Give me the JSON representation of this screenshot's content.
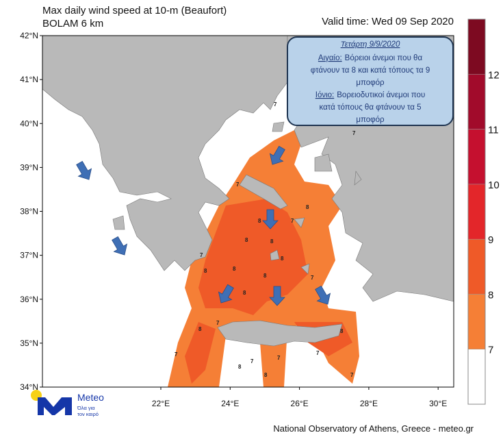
{
  "header": {
    "title": "Max daily wind speed at 10-m (Beaufort)",
    "model": "BOLAM 6 km",
    "valid_time": "Valid time: Wed 09 Sep 2020"
  },
  "info_box": {
    "date": "Τετάρτη 9/9/2020",
    "aegean_label": "Αιγαίο:",
    "aegean_lines": [
      "Βόρειοι άνεμοι που θα",
      "φτάνουν τα 8 και κατά τόπους τα 9",
      "μποφόρ"
    ],
    "ionian_label": "Ιόνιο:",
    "ionian_lines": [
      "Βορειοδυτικοί άνεμοι που",
      "κατά τόπους θα φτάνουν τα 5",
      "μποφόρ"
    ]
  },
  "latitude_labels": [
    "42°N",
    "41°N",
    "40°N",
    "39°N",
    "38°N",
    "37°N",
    "36°N",
    "35°N",
    "34°N"
  ],
  "longitude_labels": [
    "22°E",
    "24°E",
    "26°E",
    "28°E",
    "30°E"
  ],
  "map_labels": [
    "7",
    "7",
    "7",
    "8",
    "8",
    "7",
    "8",
    "8",
    "7",
    "8",
    "8",
    "7",
    "8",
    "8",
    "8",
    "8",
    "7",
    "8",
    "7",
    "8",
    "7",
    "7",
    "8",
    "7",
    "7"
  ],
  "colorbar": {
    "labels": [
      "7",
      "8",
      "9",
      "10",
      "11",
      "12"
    ],
    "colors": [
      "#ffffff",
      "#f57f36",
      "#ef5a28",
      "#e3262a",
      "#c5102f",
      "#a10b2b",
      "#7d0a21"
    ]
  },
  "footer": "National Observatory of Athens, Greece - meteo.gr",
  "logo": {
    "name": "Meteo",
    "tagline": [
      "Όλα για",
      "τον καιρό"
    ]
  }
}
